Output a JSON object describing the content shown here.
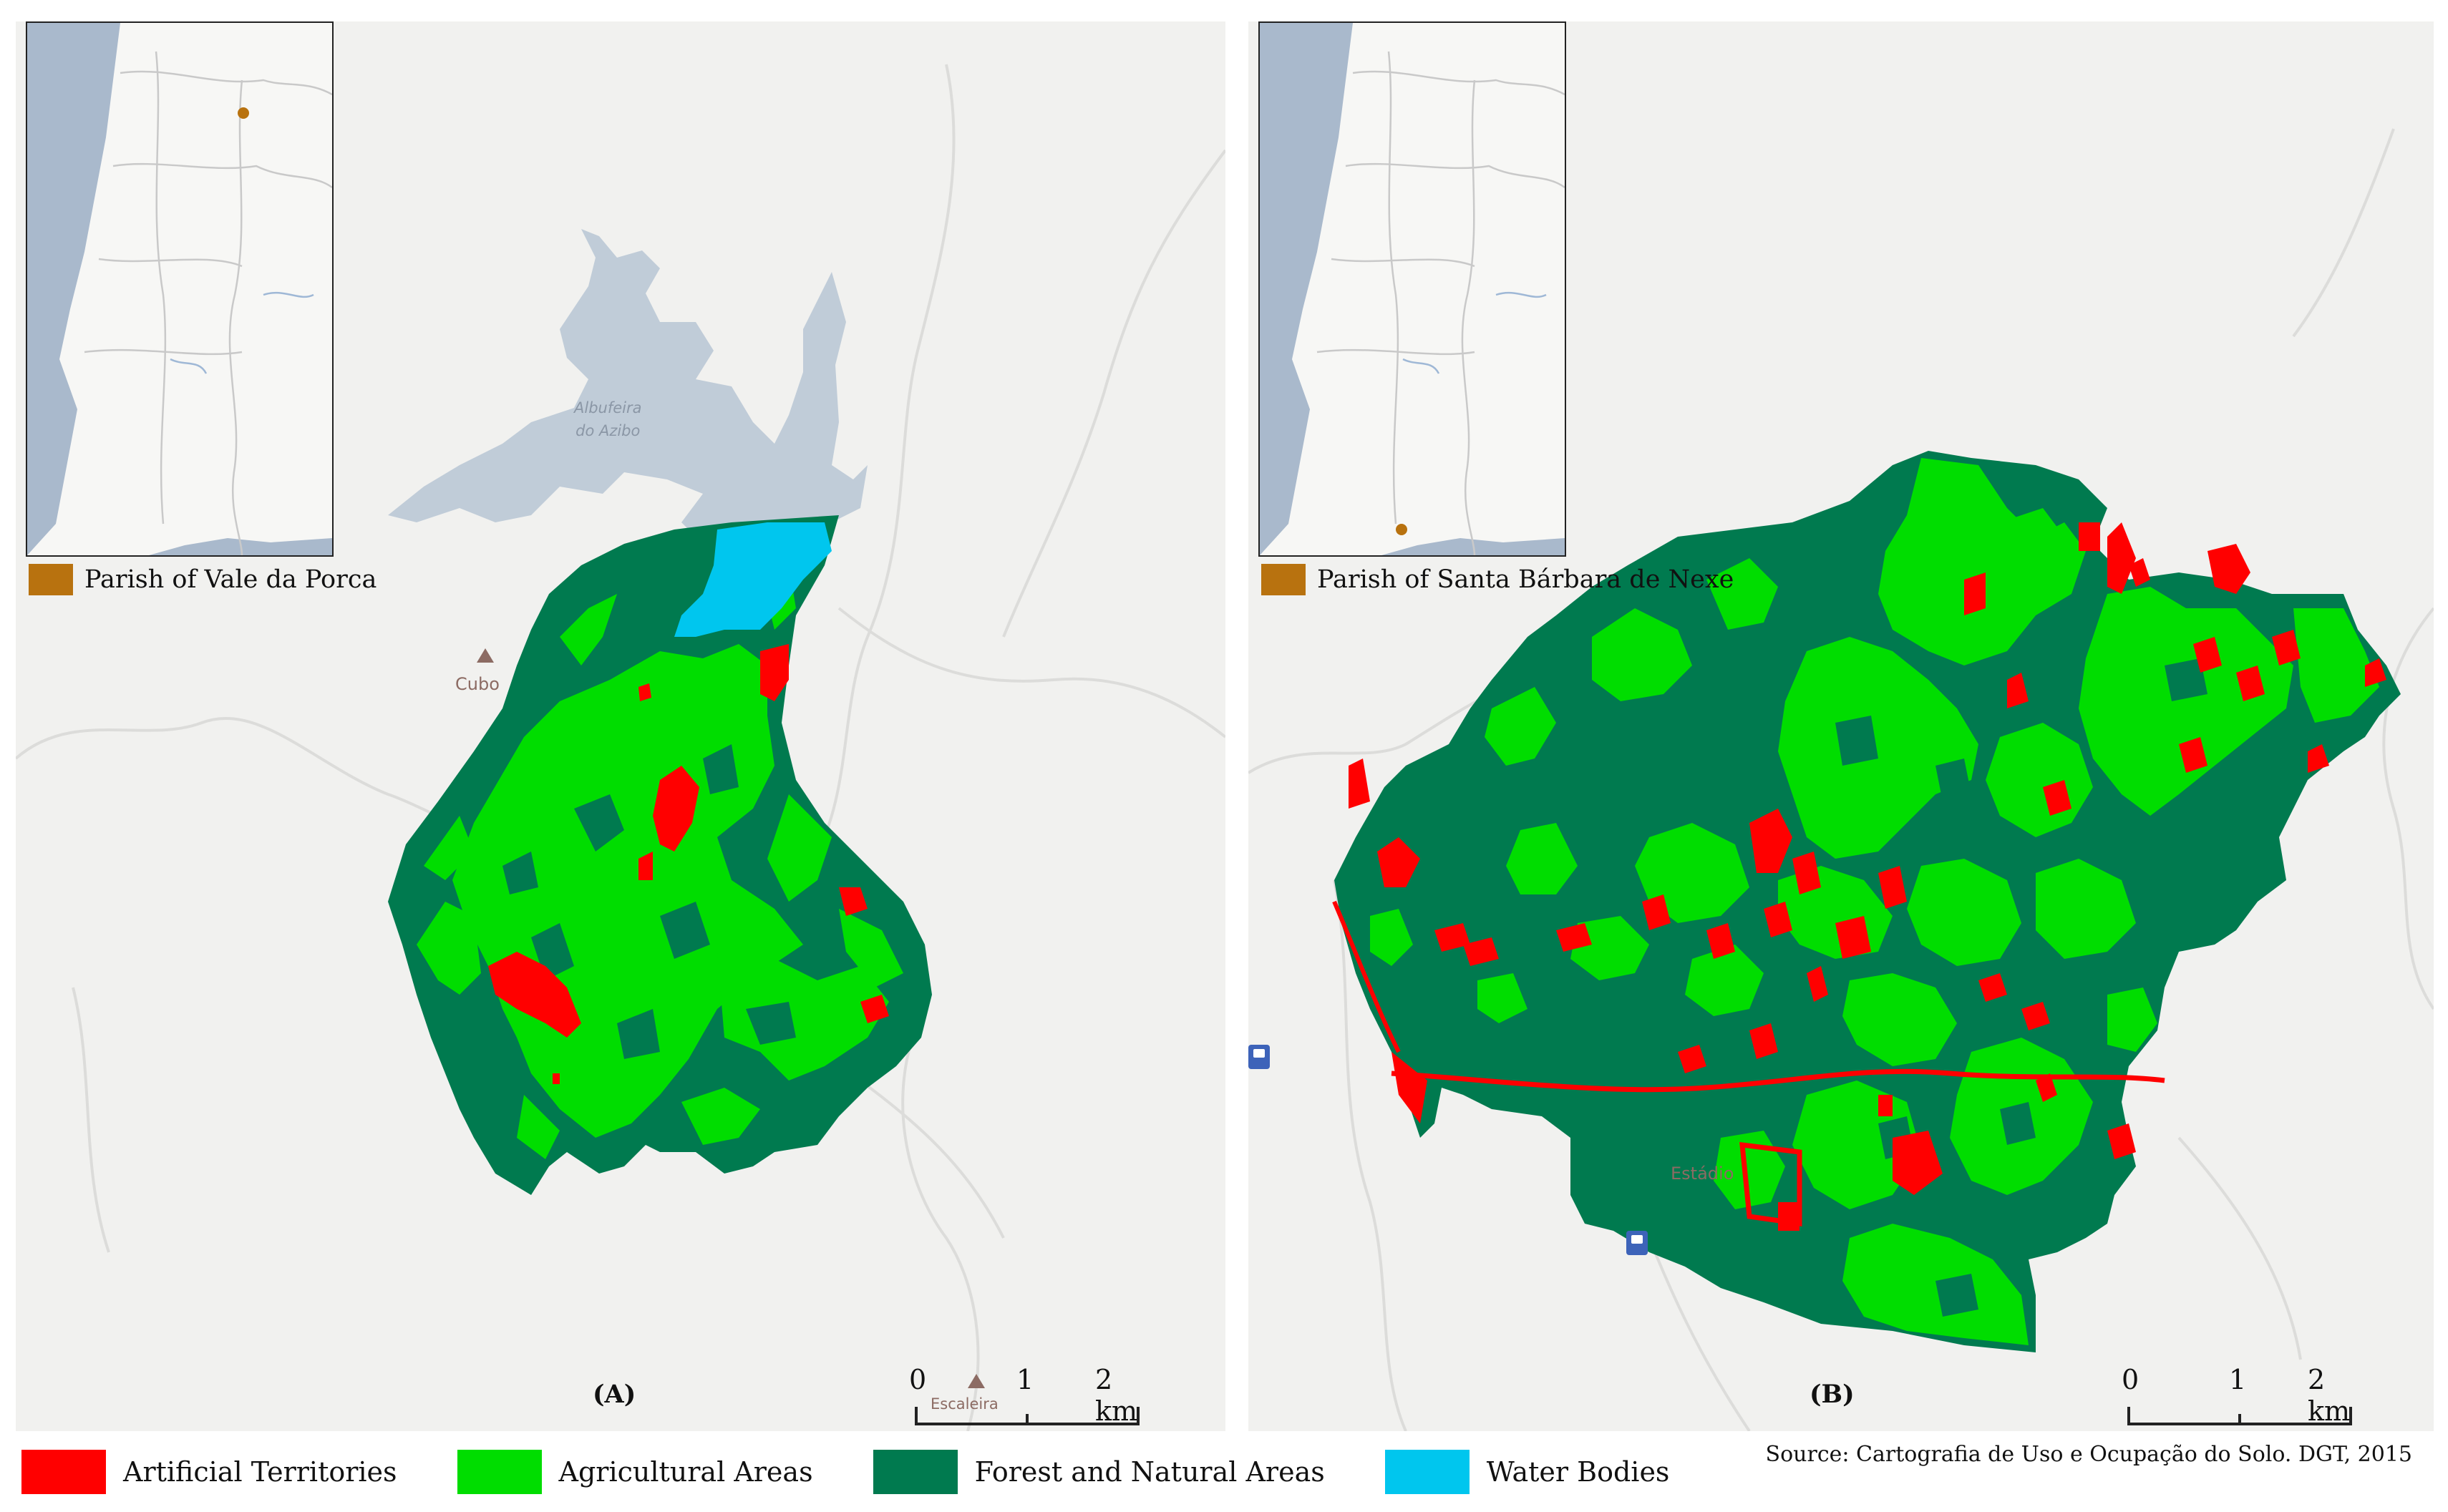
{
  "panels": [
    {
      "id": "A",
      "label": "(A)",
      "parish_legend": "Parish of Vale da Porca",
      "place_labels": {
        "cubo": "Cubo",
        "escaleira": "Escaleira",
        "lake_line1": "Albufeira",
        "lake_line2": "do Azibo"
      },
      "scale": {
        "ticks": [
          "0",
          "1",
          "2 km"
        ]
      }
    },
    {
      "id": "B",
      "label": "(B)",
      "parish_legend": "Parish of Santa Bárbara de Nexe",
      "place_labels": {
        "estadio": "Estádio"
      },
      "scale": {
        "ticks": [
          "0",
          "1",
          "2 km"
        ]
      }
    }
  ],
  "legend": [
    {
      "label": "Artificial Territories",
      "color": "#ff0000"
    },
    {
      "label": "Agricultural Areas",
      "color": "#00dd00"
    },
    {
      "label": "Forest and Natural Areas",
      "color": "#007a4f"
    },
    {
      "label": "Water Bodies",
      "color": "#00c6ee"
    }
  ],
  "source": "Source: Cartografia de Uso e Ocupação do Solo. DGT, 2015",
  "colors": {
    "basemap": "#f1f1ef",
    "lake": "#c0ccd8",
    "sea": "#a9b9cc",
    "parish_marker": "#b8720f"
  },
  "icons": [
    "bus-stop-icon",
    "place-triangle-icon"
  ]
}
